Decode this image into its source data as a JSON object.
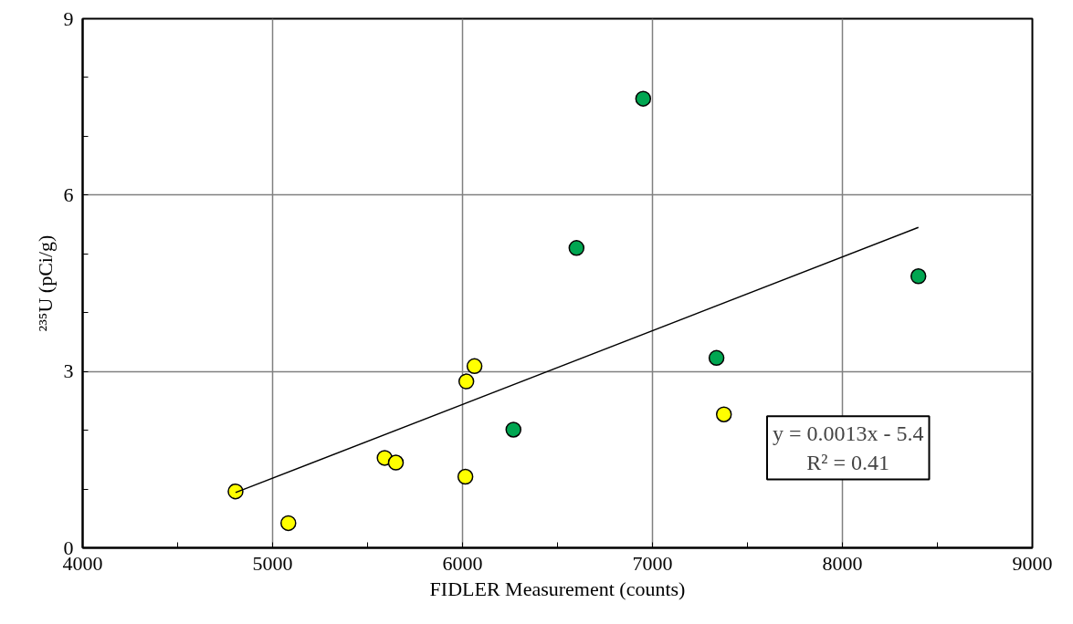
{
  "chart_data": {
    "type": "scatter",
    "xlabel": "FIDLER Measurement (counts)",
    "ylabel": "²³⁵U (pCi/g)",
    "xlim": [
      4000,
      9000
    ],
    "ylim": [
      0,
      9
    ],
    "xticks": [
      4000,
      {
        "value": 4500,
        "label": null
      },
      5000,
      {
        "value": 5500,
        "label": null
      },
      6000,
      {
        "value": 6500,
        "label": null
      },
      7000,
      {
        "value": 7500,
        "label": null
      },
      8000,
      {
        "value": 8500,
        "label": null
      },
      9000
    ],
    "yticks": [
      0,
      {
        "value": 1,
        "label": null
      },
      {
        "value": 2,
        "label": null
      },
      3,
      {
        "value": 4,
        "label": null
      },
      {
        "value": 5,
        "label": null
      },
      6,
      {
        "value": 7,
        "label": null
      },
      {
        "value": 8,
        "label": null
      },
      9
    ],
    "grid": true,
    "marker": "circle",
    "series": [
      {
        "color": "#ffff00",
        "x": [
          4805,
          5083,
          5590,
          5649,
          6020,
          6063,
          6015,
          7376
        ],
        "values": [
          0.96,
          0.42,
          1.53,
          1.45,
          2.83,
          3.09,
          1.21,
          2.27
        ]
      },
      {
        "color": "#00a651",
        "x": [
          6951,
          6600,
          6268,
          7337,
          8400
        ],
        "values": [
          7.64,
          5.1,
          2.01,
          3.23,
          4.62
        ]
      },
      {
        "type": "line",
        "color": "#000000",
        "marker": "none",
        "line_style": "solid",
        "x": [
          4805,
          8400
        ],
        "values": [
          0.94,
          5.45
        ]
      }
    ],
    "annotations": [
      "y = 0.0013x - 5.4\nR² = 0.41"
    ]
  }
}
